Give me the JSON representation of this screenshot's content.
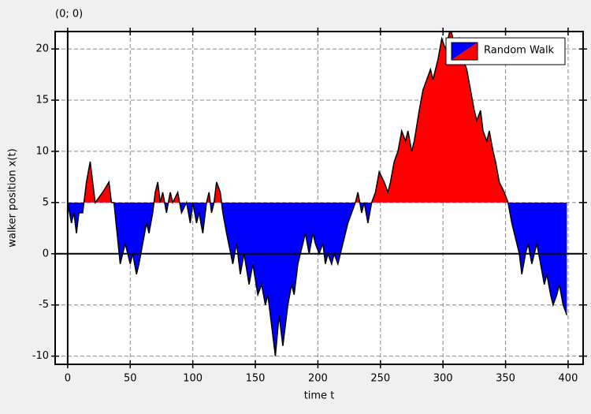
{
  "chart_data": {
    "type": "area",
    "title": "(0; 0)",
    "x_label": "time t",
    "y_label": "walker position x(t)",
    "xlim": [
      -10,
      412
    ],
    "ylim": [
      -10.8,
      21.7
    ],
    "xticks": [
      0,
      50,
      100,
      150,
      200,
      250,
      300,
      350,
      400
    ],
    "yticks": [
      -10,
      -5,
      0,
      5,
      10,
      15,
      20
    ],
    "grid": true,
    "baseline": 5,
    "legend": "upper right",
    "series": [
      {
        "name": "Random Walk",
        "color_above": "#ff0000",
        "color_below": "#0000ff",
        "x": [
          0,
          3,
          5,
          7,
          9,
          12,
          15,
          18,
          22,
          28,
          33,
          35,
          37,
          42,
          46,
          50,
          52,
          55,
          57,
          60,
          63,
          65,
          68,
          70,
          72,
          74,
          76,
          79,
          82,
          84,
          88,
          91,
          95,
          98,
          100,
          103,
          105,
          108,
          111,
          113,
          115,
          117,
          119,
          122,
          124,
          127,
          132,
          135,
          138,
          141,
          145,
          148,
          152,
          155,
          158,
          160,
          163,
          166,
          169,
          172,
          176,
          179,
          181,
          184,
          186,
          190,
          193,
          196,
          198,
          201,
          204,
          206,
          208,
          211,
          213,
          216,
          220,
          224,
          227,
          230,
          232,
          235,
          237,
          240,
          243,
          246,
          249,
          253,
          256,
          258,
          261,
          264,
          267,
          270,
          272,
          275,
          277,
          281,
          284,
          287,
          290,
          292,
          296,
          299,
          302,
          306,
          310,
          313,
          316,
          319,
          322,
          325,
          327,
          330,
          332,
          335,
          337,
          340,
          342,
          345,
          349,
          352,
          355,
          361,
          363,
          366,
          368,
          371,
          373,
          375,
          378,
          381,
          383,
          386,
          388,
          391,
          393,
          396,
          399
        ],
        "values": [
          5,
          3,
          4,
          2,
          4,
          4,
          7,
          9,
          5,
          6,
          7,
          5,
          5,
          -1,
          1,
          -1,
          0,
          -2,
          -1,
          1,
          3,
          2,
          4,
          6,
          7,
          5,
          6,
          4,
          6,
          5,
          6,
          4,
          5,
          3,
          5,
          3,
          4,
          2,
          5,
          6,
          4,
          5,
          7,
          6,
          4,
          2,
          -1,
          1,
          -2,
          0,
          -3,
          -1,
          -4,
          -3,
          -5,
          -4,
          -7,
          -10,
          -6,
          -9,
          -5,
          -3,
          -4,
          -1,
          0,
          2,
          0,
          2,
          1,
          0,
          1,
          -1,
          0,
          -1,
          0,
          -1,
          1,
          3,
          4,
          5,
          6,
          4,
          5,
          3,
          5,
          6,
          8,
          7,
          6,
          7,
          9,
          10,
          12,
          11,
          12,
          10,
          11,
          14,
          16,
          17,
          18,
          17,
          19,
          21,
          20,
          22,
          20,
          21,
          19,
          18,
          16,
          14,
          13,
          14,
          12,
          11,
          12,
          10,
          9,
          7,
          6,
          5,
          3,
          0,
          -2,
          0,
          1,
          -1,
          0,
          1,
          -1,
          -3,
          -2,
          -4,
          -5,
          -4,
          -3,
          -5,
          -6
        ]
      }
    ]
  }
}
